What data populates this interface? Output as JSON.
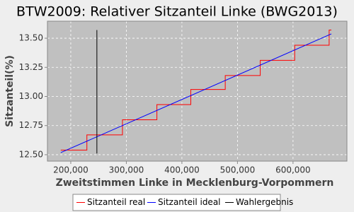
{
  "chart_data": {
    "type": "line",
    "title": "BTW2009: Relativer Sitzanteil Linke (BWG2013)",
    "x_label": "Zweitstimmen Linke in Mecklenburg-Vorpommern",
    "y_label": "Sitzanteil(%)",
    "xlim": [
      158000,
      697000
    ],
    "ylim": [
      12.445,
      13.646
    ],
    "xticks": [
      {
        "value": 200000,
        "label": "200,000"
      },
      {
        "value": 300000,
        "label": "300,000"
      },
      {
        "value": 400000,
        "label": "400,000"
      },
      {
        "value": 500000,
        "label": "500,000"
      },
      {
        "value": 600000,
        "label": "600,000"
      }
    ],
    "yticks": [
      {
        "value": 12.5,
        "label": "12.50"
      },
      {
        "value": 12.75,
        "label": "12.75"
      },
      {
        "value": 13,
        "label": "13.00"
      },
      {
        "value": 13.25,
        "label": "13.25"
      },
      {
        "value": 13.5,
        "label": "13.50"
      }
    ],
    "grid": true,
    "series": [
      {
        "name": "Sitzanteil real",
        "color": "#ff0000",
        "step": "post",
        "x": [
          182000,
          229000,
          293000,
          355000,
          416000,
          478000,
          541000,
          603000,
          665000,
          669000
        ],
        "values": [
          12.54,
          12.67,
          12.8,
          12.93,
          13.06,
          13.18,
          13.31,
          13.44,
          13.57,
          13.57
        ]
      },
      {
        "name": "Sitzanteil ideal",
        "color": "#0000ff",
        "x": [
          182000,
          669000
        ],
        "values": [
          12.518,
          13.537
        ]
      },
      {
        "name": "Wahlergebnis",
        "color": "#000000",
        "x": [
          247000,
          247000
        ],
        "values": [
          12.51,
          13.57
        ]
      }
    ]
  }
}
